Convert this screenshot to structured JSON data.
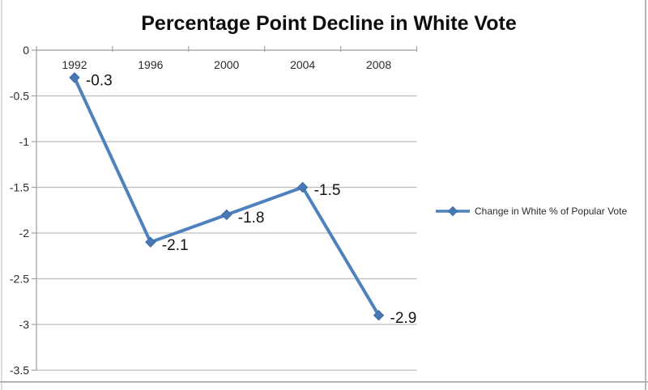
{
  "chart": {
    "colors": {
      "series_line": "#4F81BD",
      "marker_fill": "#4878B4",
      "marker_edge": "#3A6DA5",
      "gridline": "#BDBDBD",
      "axis_line": "#A3A3A3",
      "title_text": "#0D0D0D",
      "axis_text": "#2B2B2B",
      "data_label_text": "#141414",
      "legend_text": "#2B2B2B",
      "frame_border": "#C6C6C6"
    }
  },
  "chart_data": {
    "type": "line",
    "title": "Percentage Point Decline in White Vote",
    "categories": [
      "1992",
      "1996",
      "2000",
      "2004",
      "2008"
    ],
    "series": [
      {
        "name": "Change in White % of Popular Vote",
        "values": [
          -0.3,
          -2.1,
          -1.8,
          -1.5,
          -2.9
        ],
        "point_labels": [
          "-0.3",
          "-2.1",
          "-1.8",
          "-1.5",
          "-2.9"
        ]
      }
    ],
    "xlabel": "",
    "ylabel": "",
    "ylim": [
      -3.5,
      0
    ],
    "ytick_step": 0.5,
    "ytick_labels": [
      "0",
      "-0.5",
      "-1",
      "-1.5",
      "-2",
      "-2.5",
      "-3",
      "-3.5"
    ],
    "grid": true,
    "legend_position": "right",
    "marker": "diamond"
  }
}
